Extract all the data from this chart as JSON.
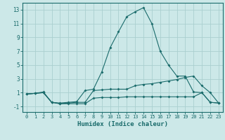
{
  "title": "",
  "xlabel": "Humidex (Indice chaleur)",
  "ylabel": "",
  "background_color": "#cce8e8",
  "grid_color": "#aacfcf",
  "line_color": "#1a6b6b",
  "xlim": [
    -0.5,
    23.5
  ],
  "ylim": [
    -1.8,
    14.0
  ],
  "xticks": [
    0,
    1,
    2,
    3,
    4,
    5,
    6,
    7,
    8,
    9,
    10,
    11,
    12,
    13,
    14,
    15,
    16,
    17,
    18,
    19,
    20,
    21,
    22,
    23
  ],
  "yticks": [
    -1,
    1,
    3,
    5,
    7,
    9,
    11,
    13
  ],
  "series": [
    [
      0.8,
      0.9,
      1.0,
      -0.4,
      -0.6,
      -0.6,
      -0.6,
      -0.6,
      0.2,
      0.3,
      0.3,
      0.3,
      0.4,
      0.4,
      0.4,
      0.4,
      0.4,
      0.4,
      0.4,
      0.4,
      0.4,
      1.0,
      -0.4,
      -0.5
    ],
    [
      0.8,
      0.9,
      1.0,
      -0.4,
      -0.6,
      -0.5,
      -0.4,
      -0.4,
      1.3,
      1.4,
      1.5,
      1.5,
      1.5,
      2.0,
      2.2,
      2.3,
      2.5,
      2.7,
      2.9,
      3.2,
      3.4,
      2.0,
      1.0,
      -0.5
    ],
    [
      0.8,
      0.9,
      1.1,
      -0.4,
      -0.5,
      -0.4,
      -0.3,
      1.3,
      1.5,
      4.0,
      7.5,
      9.8,
      12.0,
      12.7,
      13.3,
      11.0,
      7.0,
      5.0,
      3.4,
      3.4,
      1.1,
      1.0,
      -0.4,
      -0.5
    ]
  ]
}
